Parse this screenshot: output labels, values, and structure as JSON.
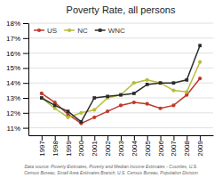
{
  "chart_data": {
    "type": "line",
    "title": "Poverty Rate, all persons",
    "annotations": [
      "Data source: Poverty Estimates, Poverty and Median Income Estimates - Counties, U.S.\nCensus Bureau, Small Area Estimates Branch; U.S. Census Bureau, Population Division"
    ],
    "x": [
      1997,
      1998,
      1999,
      2000,
      2001,
      2002,
      2003,
      2004,
      2005,
      2006,
      2007,
      2008,
      2009
    ],
    "series": [
      {
        "name": "US",
        "color": "#c0392b",
        "marker": "circle",
        "values": [
          13.3,
          12.7,
          11.9,
          11.3,
          11.7,
          12.1,
          12.5,
          12.7,
          12.6,
          12.3,
          12.5,
          13.2,
          14.3
        ]
      },
      {
        "name": "NC",
        "color": "#b8bc3a",
        "marker": "circle",
        "values": [
          13.0,
          12.3,
          11.7,
          12.0,
          12.2,
          13.0,
          13.2,
          14.0,
          14.2,
          14.0,
          13.5,
          13.4,
          15.4
        ]
      },
      {
        "name": "WNC",
        "color": "#2c2c2c",
        "marker": "square",
        "values": [
          13.0,
          12.5,
          12.1,
          11.4,
          13.0,
          13.1,
          13.2,
          13.3,
          13.9,
          14.0,
          14.0,
          14.2,
          16.5
        ]
      }
    ],
    "xlim": [
      1996,
      2010
    ],
    "xticks": [
      1997,
      1998,
      1999,
      2000,
      2001,
      2002,
      2003,
      2004,
      2005,
      2006,
      2007,
      2008,
      2009
    ],
    "ylim": [
      10.5,
      18.0
    ],
    "yticks": [
      {
        "value": 11,
        "label": "11%"
      },
      {
        "value": 12,
        "label": "12%"
      },
      {
        "value": 13,
        "label": "13%"
      },
      {
        "value": 14,
        "label": "14%"
      },
      {
        "value": 15,
        "label": "15%"
      },
      {
        "value": 16,
        "label": "16%"
      },
      {
        "value": 17,
        "label": "17%"
      },
      {
        "value": 18,
        "label": "18%"
      }
    ],
    "grid": "y",
    "legend": "upper left"
  }
}
